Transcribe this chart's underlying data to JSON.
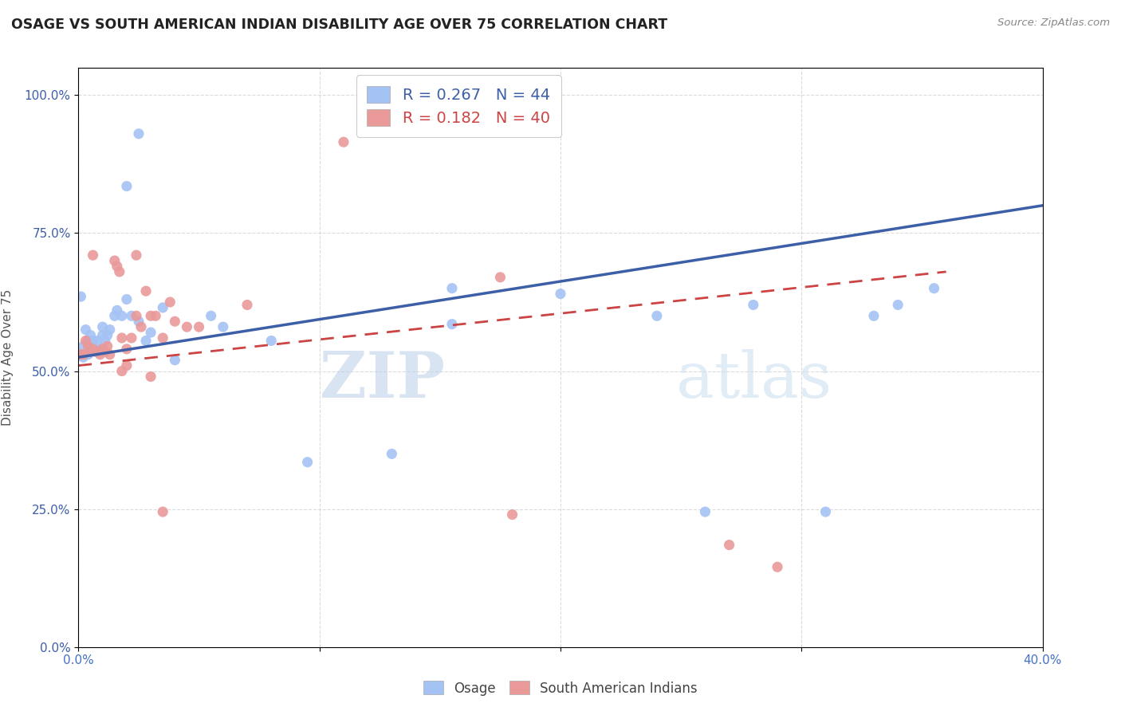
{
  "title": "OSAGE VS SOUTH AMERICAN INDIAN DISABILITY AGE OVER 75 CORRELATION CHART",
  "source": "Source: ZipAtlas.com",
  "ylabel": "Disability Age Over 75",
  "watermark": "ZIPatlas",
  "legend_osage_r": "R = 0.267",
  "legend_osage_n": "N = 44",
  "legend_sa_r": "R = 0.182",
  "legend_sa_n": "N = 40",
  "osage_color": "#a4c2f4",
  "sa_color": "#ea9999",
  "osage_line_color": "#3d5fa8",
  "sa_line_color": "#cc4444",
  "xlim": [
    0.0,
    0.4
  ],
  "ylim": [
    0.0,
    1.05
  ],
  "yticks": [
    0.0,
    0.25,
    0.5,
    0.75,
    1.0
  ],
  "ytick_labels": [
    "0.0%",
    "25.0%",
    "50.0%",
    "75.0%",
    "100.0%"
  ],
  "xtick_labels": [
    "0.0%",
    "",
    "",
    "",
    "40.0%"
  ],
  "osage_x": [
    0.001,
    0.002,
    0.002,
    0.003,
    0.004,
    0.004,
    0.005,
    0.005,
    0.006,
    0.007,
    0.008,
    0.009,
    0.01,
    0.01,
    0.011,
    0.012,
    0.013,
    0.015,
    0.016,
    0.018,
    0.02,
    0.022,
    0.025,
    0.028,
    0.03,
    0.035,
    0.04,
    0.055,
    0.06,
    0.08,
    0.095,
    0.13,
    0.155,
    0.155,
    0.2,
    0.24,
    0.26,
    0.28,
    0.31,
    0.33,
    0.34,
    0.355,
    0.02,
    0.025
  ],
  "osage_y": [
    0.635,
    0.525,
    0.545,
    0.575,
    0.53,
    0.555,
    0.565,
    0.54,
    0.555,
    0.535,
    0.555,
    0.54,
    0.565,
    0.58,
    0.555,
    0.565,
    0.575,
    0.6,
    0.61,
    0.6,
    0.63,
    0.6,
    0.59,
    0.555,
    0.57,
    0.615,
    0.52,
    0.6,
    0.58,
    0.555,
    0.335,
    0.35,
    0.585,
    0.65,
    0.64,
    0.6,
    0.245,
    0.62,
    0.245,
    0.6,
    0.62,
    0.65,
    0.835,
    0.93
  ],
  "sa_x": [
    0.001,
    0.002,
    0.003,
    0.004,
    0.005,
    0.006,
    0.008,
    0.009,
    0.01,
    0.011,
    0.012,
    0.013,
    0.015,
    0.016,
    0.017,
    0.018,
    0.02,
    0.022,
    0.024,
    0.026,
    0.03,
    0.032,
    0.035,
    0.038,
    0.04,
    0.045,
    0.05,
    0.07,
    0.11,
    0.175,
    0.18,
    0.03,
    0.035,
    0.018,
    0.02,
    0.006,
    0.024,
    0.028,
    0.29,
    0.27
  ],
  "sa_y": [
    0.53,
    0.53,
    0.555,
    0.545,
    0.535,
    0.54,
    0.535,
    0.53,
    0.54,
    0.535,
    0.545,
    0.53,
    0.7,
    0.69,
    0.68,
    0.56,
    0.54,
    0.56,
    0.6,
    0.58,
    0.6,
    0.6,
    0.56,
    0.625,
    0.59,
    0.58,
    0.58,
    0.62,
    0.915,
    0.67,
    0.24,
    0.49,
    0.245,
    0.5,
    0.51,
    0.71,
    0.71,
    0.645,
    0.145,
    0.185
  ],
  "line_osage_x0": 0.0,
  "line_osage_y0": 0.525,
  "line_osage_x1": 0.4,
  "line_osage_y1": 0.8,
  "line_sa_x0": 0.0,
  "line_sa_y0": 0.51,
  "line_sa_x1": 0.36,
  "line_sa_y1": 0.68
}
